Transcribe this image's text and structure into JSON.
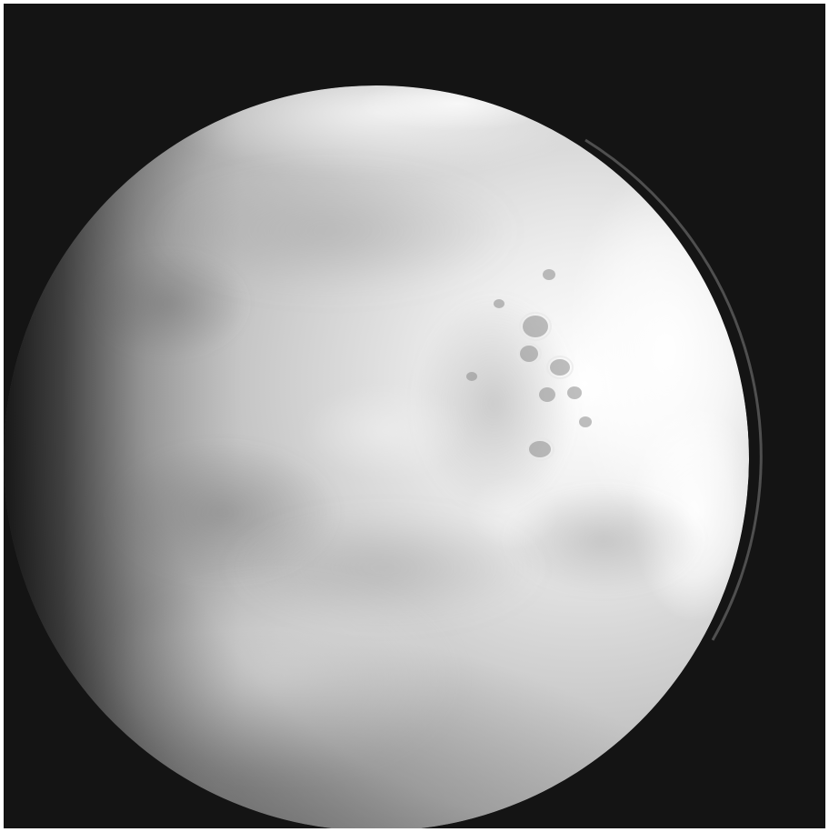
{
  "photo": {
    "subject": "planet-mars-grayscale",
    "background_color": "#141414",
    "frame_color": "#ffffff",
    "disc_colors": {
      "highlight": "#f7f7f7",
      "mid": "#c9c9c9",
      "shadow": "#5a5a5a",
      "terminator": "#262626"
    }
  }
}
